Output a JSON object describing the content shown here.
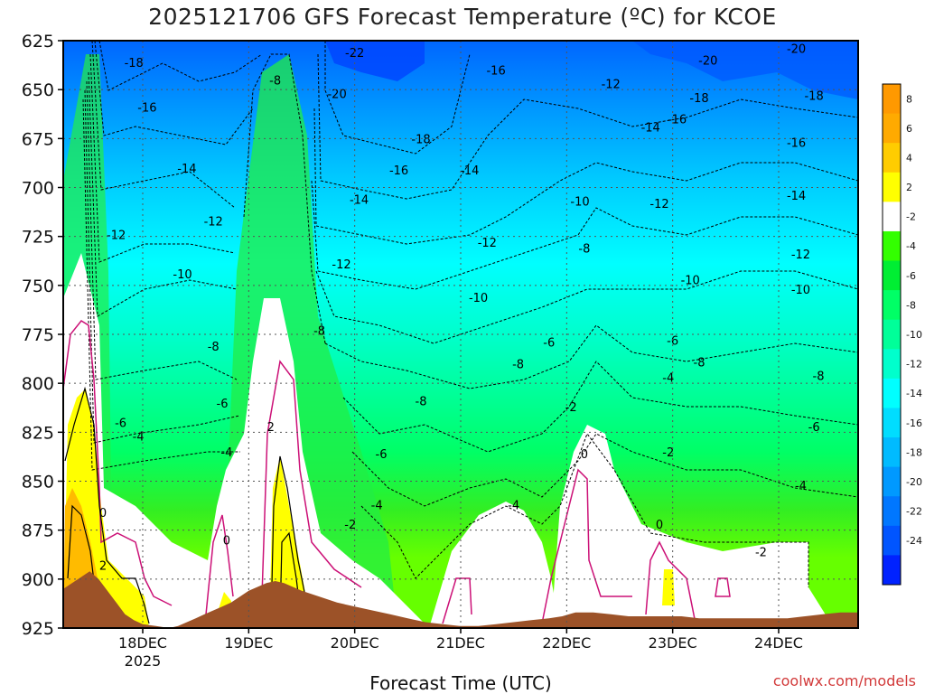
{
  "chart_data": {
    "type": "heatmap",
    "title": "2025121706 GFS Forecast Temperature (ºC) for KCOE",
    "xlabel": "Forecast Time (UTC)",
    "ylabel": "",
    "credit": "coolwx.com/models",
    "x_unit": "forecast hours from 2025-12-17 06 UTC",
    "x_range": [
      0,
      180
    ],
    "y_unit": "pressure (hPa)",
    "y_range": [
      925,
      625
    ],
    "y_ticks": [
      625,
      650,
      675,
      700,
      725,
      750,
      775,
      800,
      825,
      850,
      875,
      900,
      925
    ],
    "x_ticks": [
      {
        "x": 18,
        "label": "18DEC",
        "sub": "2025"
      },
      {
        "x": 42,
        "label": "19DEC",
        "sub": ""
      },
      {
        "x": 66,
        "label": "20DEC",
        "sub": ""
      },
      {
        "x": 90,
        "label": "21DEC",
        "sub": ""
      },
      {
        "x": 114,
        "label": "22DEC",
        "sub": ""
      },
      {
        "x": 138,
        "label": "23DEC",
        "sub": ""
      },
      {
        "x": 162,
        "label": "24DEC",
        "sub": ""
      }
    ],
    "grid": true,
    "legend": "right",
    "colorbar": {
      "labels": [
        "8",
        "6",
        "4",
        "2",
        "-2",
        "-4",
        "-6",
        "-8",
        "-10",
        "-12",
        "-14",
        "-16",
        "-18",
        "-20",
        "-22",
        "-24"
      ],
      "bands": [
        {
          "min": 8,
          "max": 10,
          "color": "#ff9900"
        },
        {
          "min": 6,
          "max": 8,
          "color": "#ffaa00"
        },
        {
          "min": 4,
          "max": 6,
          "color": "#ffcc00"
        },
        {
          "min": 2,
          "max": 4,
          "color": "#ffff00"
        },
        {
          "min": -2,
          "max": 2,
          "color": "#ffffff"
        },
        {
          "min": -4,
          "max": -2,
          "color": "#33ff00"
        },
        {
          "min": -6,
          "max": -4,
          "color": "#00ee33"
        },
        {
          "min": -8,
          "max": -6,
          "color": "#00ff66"
        },
        {
          "min": -10,
          "max": -8,
          "color": "#00ff99"
        },
        {
          "min": -12,
          "max": -10,
          "color": "#00ffcc"
        },
        {
          "min": -14,
          "max": -12,
          "color": "#00ffff"
        },
        {
          "min": -16,
          "max": -14,
          "color": "#00ddff"
        },
        {
          "min": -18,
          "max": -16,
          "color": "#00bbff"
        },
        {
          "min": -20,
          "max": -18,
          "color": "#0099ff"
        },
        {
          "min": -22,
          "max": -20,
          "color": "#0077ff"
        },
        {
          "min": -24,
          "max": -22,
          "color": "#0055ff"
        },
        {
          "min": -26,
          "max": -24,
          "color": "#0022ff"
        }
      ]
    },
    "terrain_color": "#9c5228",
    "terrain_top": [
      [
        0,
        905
      ],
      [
        2,
        902
      ],
      [
        4,
        899
      ],
      [
        6,
        896
      ],
      [
        8,
        900
      ],
      [
        10,
        906
      ],
      [
        12,
        912
      ],
      [
        14,
        918
      ],
      [
        16,
        921
      ],
      [
        18,
        923
      ],
      [
        21,
        924
      ],
      [
        24,
        925
      ],
      [
        26,
        924
      ],
      [
        28,
        922
      ],
      [
        30,
        920
      ],
      [
        32,
        918
      ],
      [
        34,
        916
      ],
      [
        36,
        914
      ],
      [
        38,
        912
      ],
      [
        40,
        909
      ],
      [
        42,
        906
      ],
      [
        44,
        904
      ],
      [
        46,
        902
      ],
      [
        48,
        901
      ],
      [
        50,
        902
      ],
      [
        52,
        904
      ],
      [
        54,
        906
      ],
      [
        58,
        909
      ],
      [
        62,
        912
      ],
      [
        66,
        914
      ],
      [
        70,
        916
      ],
      [
        74,
        918
      ],
      [
        78,
        920
      ],
      [
        82,
        922
      ],
      [
        86,
        923
      ],
      [
        90,
        924
      ],
      [
        94,
        924
      ],
      [
        98,
        923
      ],
      [
        102,
        922
      ],
      [
        106,
        921
      ],
      [
        110,
        920
      ],
      [
        113,
        919
      ],
      [
        116,
        917
      ],
      [
        120,
        917
      ],
      [
        124,
        918
      ],
      [
        128,
        919
      ],
      [
        132,
        919
      ],
      [
        136,
        919
      ],
      [
        140,
        919
      ],
      [
        144,
        920
      ],
      [
        148,
        920
      ],
      [
        152,
        920
      ],
      [
        156,
        920
      ],
      [
        160,
        920
      ],
      [
        164,
        920
      ],
      [
        168,
        919
      ],
      [
        172,
        918
      ],
      [
        176,
        917
      ],
      [
        180,
        917
      ]
    ],
    "contour_labels": [
      {
        "x": 16,
        "p": 636,
        "v": "-18"
      },
      {
        "x": 19,
        "p": 659,
        "v": "-16"
      },
      {
        "x": 28,
        "p": 690,
        "v": "-14"
      },
      {
        "x": 34,
        "p": 717,
        "v": "-12"
      },
      {
        "x": 12,
        "p": 724,
        "v": "-12"
      },
      {
        "x": 27,
        "p": 744,
        "v": "-10"
      },
      {
        "x": 34,
        "p": 781,
        "v": "-8"
      },
      {
        "x": 36,
        "p": 810,
        "v": "-6"
      },
      {
        "x": 13,
        "p": 820,
        "v": "-6"
      },
      {
        "x": 17,
        "p": 827,
        "v": "-4"
      },
      {
        "x": 37,
        "p": 835,
        "v": "-4"
      },
      {
        "x": 48,
        "p": 645,
        "v": "-8"
      },
      {
        "x": 47,
        "p": 822,
        "v": "2"
      },
      {
        "x": 37,
        "p": 880,
        "v": "0"
      },
      {
        "x": 9,
        "p": 866,
        "v": "0"
      },
      {
        "x": 9,
        "p": 893,
        "v": "2"
      },
      {
        "x": 66,
        "p": 631,
        "v": "-22"
      },
      {
        "x": 62,
        "p": 652,
        "v": "-20"
      },
      {
        "x": 81,
        "p": 675,
        "v": "-18"
      },
      {
        "x": 76,
        "p": 691,
        "v": "-16"
      },
      {
        "x": 67,
        "p": 706,
        "v": "-14"
      },
      {
        "x": 92,
        "p": 691,
        "v": "-14"
      },
      {
        "x": 63,
        "p": 739,
        "v": "-12"
      },
      {
        "x": 96,
        "p": 728,
        "v": "-12"
      },
      {
        "x": 94,
        "p": 756,
        "v": "-10"
      },
      {
        "x": 58,
        "p": 773,
        "v": "-8"
      },
      {
        "x": 103,
        "p": 790,
        "v": "-8"
      },
      {
        "x": 81,
        "p": 809,
        "v": "-8"
      },
      {
        "x": 72,
        "p": 836,
        "v": "-6"
      },
      {
        "x": 71,
        "p": 862,
        "v": "-4"
      },
      {
        "x": 65,
        "p": 872,
        "v": "-2"
      },
      {
        "x": 98,
        "p": 640,
        "v": "-16"
      },
      {
        "x": 102,
        "p": 862,
        "v": "-4"
      },
      {
        "x": 110,
        "p": 779,
        "v": "-6"
      },
      {
        "x": 117,
        "p": 707,
        "v": "-10"
      },
      {
        "x": 118,
        "p": 731,
        "v": "-8"
      },
      {
        "x": 115,
        "p": 812,
        "v": "-2"
      },
      {
        "x": 118,
        "p": 836,
        "v": "0"
      },
      {
        "x": 124,
        "p": 647,
        "v": "-12"
      },
      {
        "x": 133,
        "p": 669,
        "v": "-14"
      },
      {
        "x": 139,
        "p": 665,
        "v": "-16"
      },
      {
        "x": 146,
        "p": 635,
        "v": "-20"
      },
      {
        "x": 144,
        "p": 654,
        "v": "-18"
      },
      {
        "x": 135,
        "p": 708,
        "v": "-12"
      },
      {
        "x": 142,
        "p": 747,
        "v": "-10"
      },
      {
        "x": 138,
        "p": 778,
        "v": "-6"
      },
      {
        "x": 144,
        "p": 789,
        "v": "-8"
      },
      {
        "x": 137,
        "p": 797,
        "v": "-4"
      },
      {
        "x": 137,
        "p": 835,
        "v": "-2"
      },
      {
        "x": 135,
        "p": 872,
        "v": "0"
      },
      {
        "x": 166,
        "p": 629,
        "v": "-20"
      },
      {
        "x": 170,
        "p": 653,
        "v": "-18"
      },
      {
        "x": 166,
        "p": 677,
        "v": "-16"
      },
      {
        "x": 166,
        "p": 704,
        "v": "-14"
      },
      {
        "x": 167,
        "p": 734,
        "v": "-12"
      },
      {
        "x": 167,
        "p": 752,
        "v": "-10"
      },
      {
        "x": 171,
        "p": 796,
        "v": "-8"
      },
      {
        "x": 170,
        "p": 822,
        "v": "-6"
      },
      {
        "x": 167,
        "p": 852,
        "v": "-4"
      },
      {
        "x": 158,
        "p": 886,
        "v": "-2"
      }
    ]
  }
}
